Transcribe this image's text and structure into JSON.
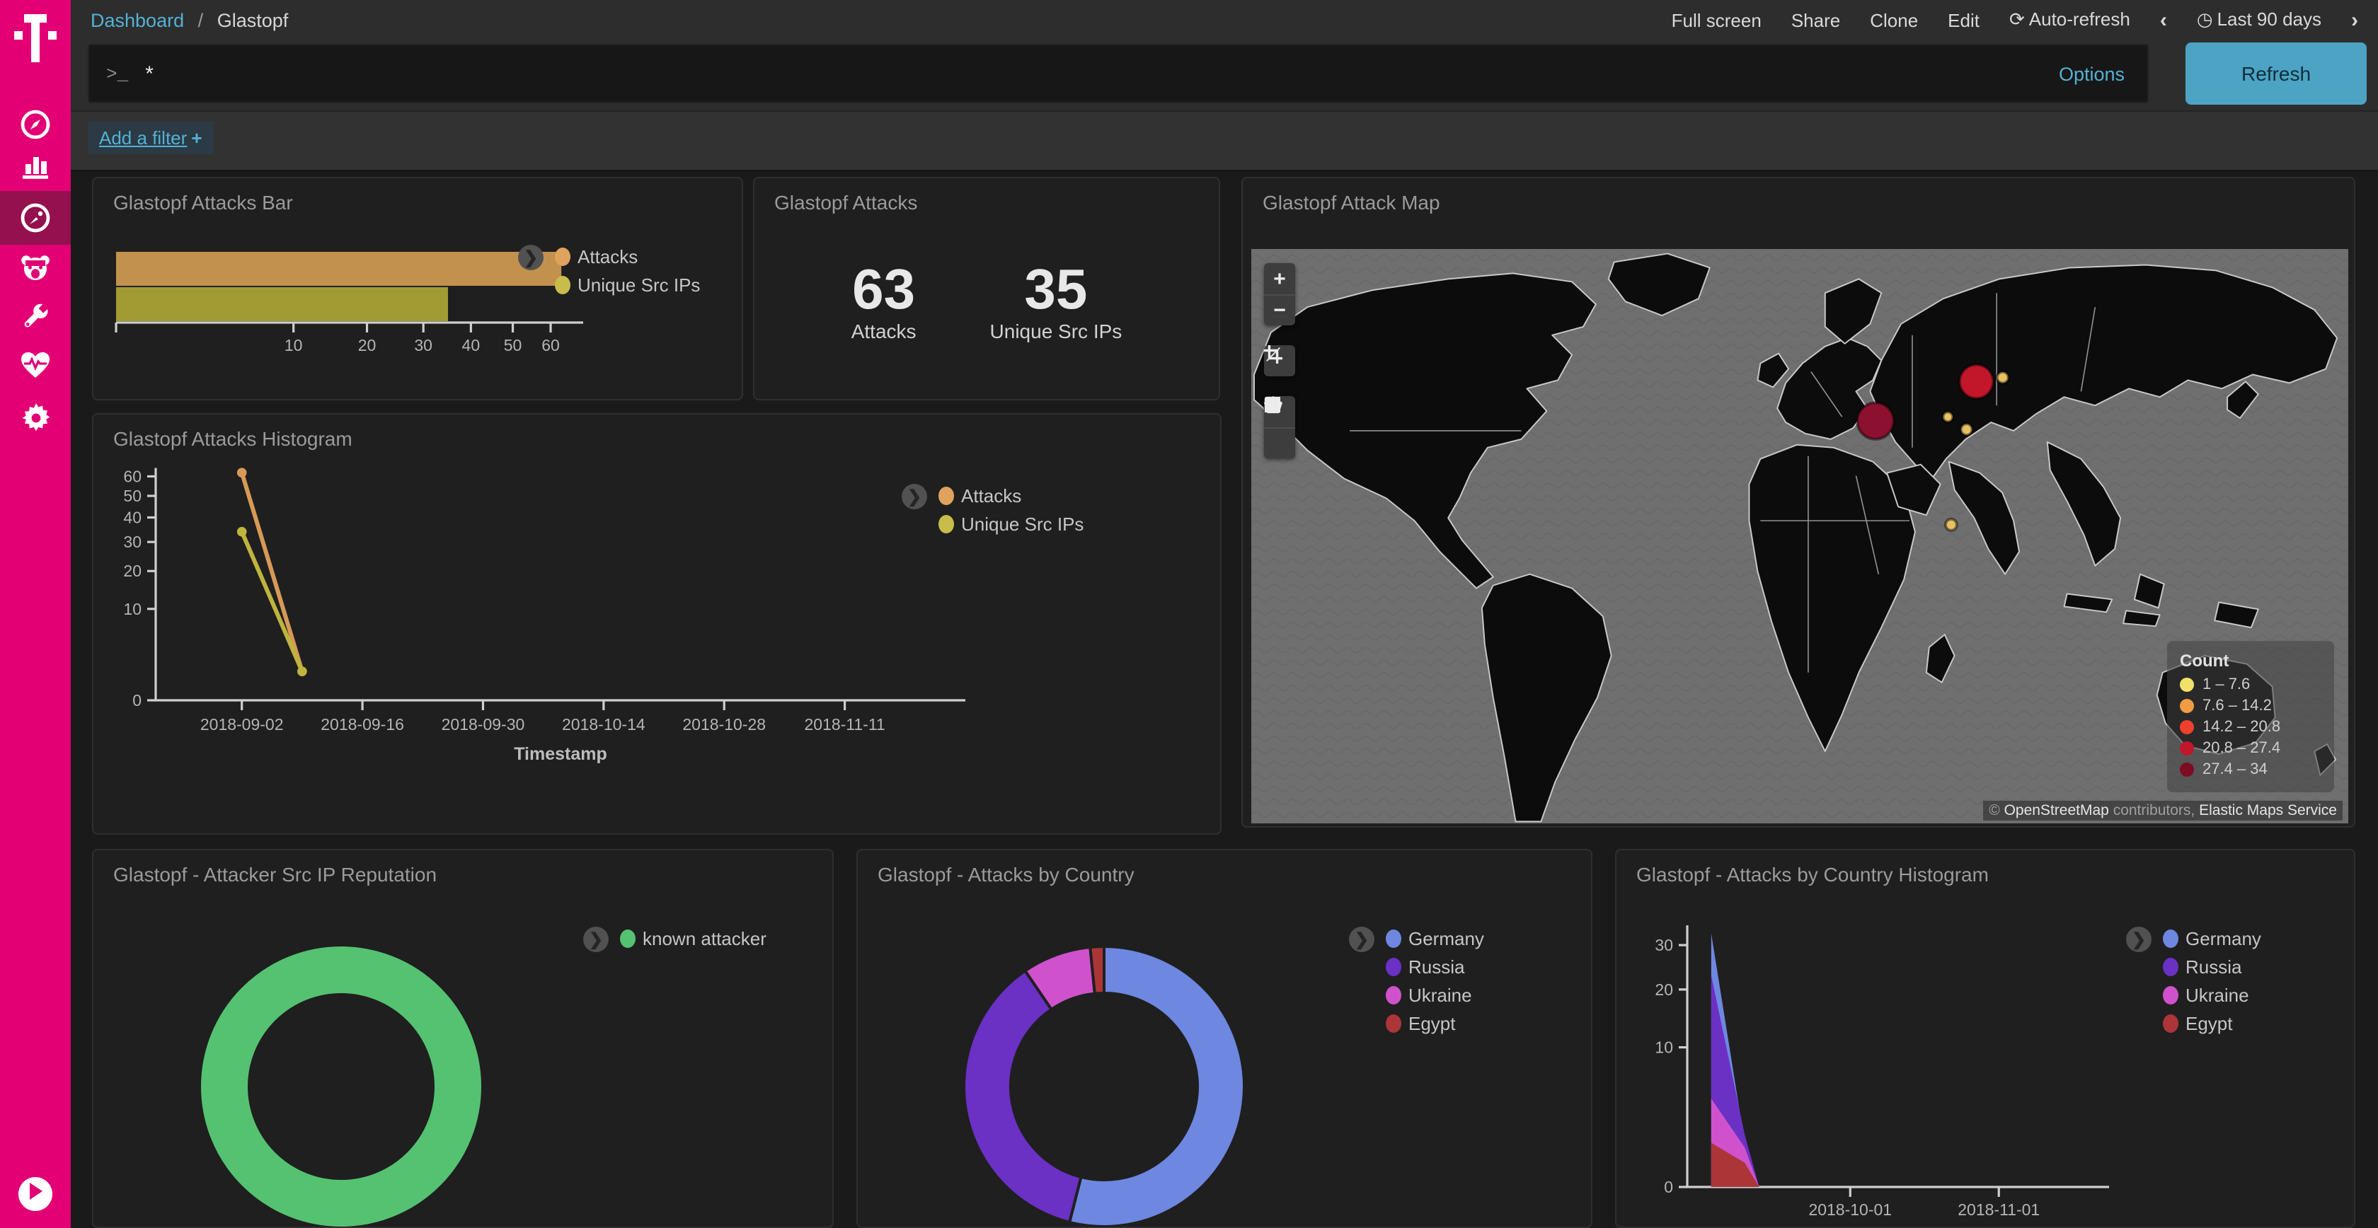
{
  "sidebar": {
    "brand": "Telekom",
    "items": [
      {
        "id": "discover",
        "icon": "compass-icon"
      },
      {
        "id": "visualize",
        "icon": "bar-chart-icon"
      },
      {
        "id": "dashboard",
        "icon": "gauge-icon",
        "active": true
      },
      {
        "id": "honeypot",
        "icon": "bear-icon"
      },
      {
        "id": "dev-tools",
        "icon": "wrench-icon"
      },
      {
        "id": "monitoring",
        "icon": "heartbeat-icon"
      },
      {
        "id": "management",
        "icon": "gear-icon"
      }
    ]
  },
  "topbar": {
    "breadcrumb": {
      "parent": "Dashboard",
      "separator": "/",
      "current": "Glastopf"
    },
    "actions": [
      "Full screen",
      "Share",
      "Clone",
      "Edit"
    ],
    "auto_refresh": "Auto-refresh",
    "prev_arrow": "‹",
    "next_arrow": "›",
    "time_range": "Last 90 days"
  },
  "query": {
    "prompt": ">_",
    "value": "*",
    "options_label": "Options",
    "refresh_label": "Refresh"
  },
  "filter_bar": {
    "add_filter_label": "Add a filter",
    "plus": "+"
  },
  "panels": {
    "attacks_bar": {
      "title": "Glastopf Attacks Bar",
      "legend": [
        {
          "label": "Attacks",
          "color": "#e0a35e"
        },
        {
          "label": "Unique Src IPs",
          "color": "#c8bd4a"
        }
      ]
    },
    "attacks_metric": {
      "title": "Glastopf Attacks",
      "metrics": [
        {
          "value": "63",
          "label": "Attacks"
        },
        {
          "value": "35",
          "label": "Unique Src IPs"
        }
      ]
    },
    "attack_map": {
      "title": "Glastopf Attack Map",
      "legend_title": "Count",
      "legend": [
        {
          "label": "1 – 7.6",
          "color": "#f2e168"
        },
        {
          "label": "7.6 – 14.2",
          "color": "#f09c44"
        },
        {
          "label": "14.2 – 20.8",
          "color": "#ef402d"
        },
        {
          "label": "20.8 – 27.4",
          "color": "#c2162b"
        },
        {
          "label": "27.4 – 34",
          "color": "#7d0c22"
        }
      ],
      "attribution": {
        "copyright": "©",
        "link1": "OpenStreetMap",
        "middle": "contributors,",
        "link2": "Elastic Maps Service"
      },
      "controls": {
        "zoom_in": "+",
        "zoom_out": "−"
      }
    },
    "attacks_histogram": {
      "title": "Glastopf Attacks Histogram",
      "legend": [
        {
          "label": "Attacks",
          "color": "#e0a35e"
        },
        {
          "label": "Unique Src IPs",
          "color": "#c8bd4a"
        }
      ]
    },
    "src_ip_reputation": {
      "title": "Glastopf - Attacker Src IP Reputation",
      "legend": [
        {
          "label": "known attacker",
          "color": "#55c271"
        }
      ]
    },
    "attacks_by_country": {
      "title": "Glastopf - Attacks by Country",
      "legend": [
        {
          "label": "Germany",
          "color": "#6e87e0"
        },
        {
          "label": "Russia",
          "color": "#6b30c4"
        },
        {
          "label": "Ukraine",
          "color": "#cf52cc"
        },
        {
          "label": "Egypt",
          "color": "#ac3538"
        }
      ]
    },
    "country_histogram": {
      "title": "Glastopf - Attacks by Country Histogram",
      "legend": [
        {
          "label": "Germany",
          "color": "#6e87e0"
        },
        {
          "label": "Russia",
          "color": "#6b30c4"
        },
        {
          "label": "Ukraine",
          "color": "#cf52cc"
        },
        {
          "label": "Egypt",
          "color": "#ac3538"
        }
      ]
    }
  },
  "chart_data": {
    "attacks_bar": {
      "type": "bar",
      "orientation": "horizontal",
      "scale_x": "sqrt",
      "categories": [
        "Attacks",
        "Unique Src IPs"
      ],
      "values": [
        63,
        35
      ],
      "colors": [
        "#c3914e",
        "#a29a33"
      ],
      "x_ticks": [
        10,
        20,
        30,
        40,
        50,
        60
      ],
      "x_max": 66
    },
    "attacks_histogram": {
      "type": "line",
      "scale_y": "sqrt",
      "y_max": 66,
      "y_ticks": [
        0,
        10,
        20,
        30,
        40,
        50,
        60
      ],
      "x_domain": [
        "2018-08-23",
        "2018-11-25"
      ],
      "x_ticks": [
        "2018-09-02",
        "2018-09-16",
        "2018-09-30",
        "2018-10-14",
        "2018-10-28",
        "2018-11-11"
      ],
      "xlabel": "Timestamp",
      "series": [
        {
          "name": "Attacks",
          "color": "#d79a56",
          "points": [
            [
              "2018-09-02",
              62
            ],
            [
              "2018-09-09",
              1
            ]
          ]
        },
        {
          "name": "Unique Src IPs",
          "color": "#bfb43e",
          "points": [
            [
              "2018-09-02",
              34
            ],
            [
              "2018-09-09",
              1
            ]
          ]
        }
      ]
    },
    "attack_map": {
      "type": "map-bubbles",
      "bubbles": [
        {
          "x": 0.569,
          "y": 0.298,
          "r": 13,
          "color": "#8c102f",
          "bucket": "27.4 – 34"
        },
        {
          "x": 0.661,
          "y": 0.229,
          "r": 12,
          "color": "#c2162b",
          "bucket": "20.8 – 27.4"
        },
        {
          "x": 0.685,
          "y": 0.222,
          "r": 4,
          "color": "#e7c262",
          "bucket": "1 – 7.6"
        },
        {
          "x": 0.635,
          "y": 0.291,
          "r": 3.5,
          "color": "#e7c262",
          "bucket": "1 – 7.6"
        },
        {
          "x": 0.652,
          "y": 0.313,
          "r": 4,
          "color": "#e7c262",
          "bucket": "1 – 7.6"
        },
        {
          "x": 0.638,
          "y": 0.48,
          "r": 4,
          "color": "#e7c262",
          "bucket": "1 – 7.6"
        }
      ]
    },
    "src_ip_reputation": {
      "type": "donut",
      "slices": [
        {
          "label": "known attacker",
          "value": 63,
          "color": "#55c271"
        }
      ]
    },
    "attacks_by_country": {
      "type": "donut",
      "slices": [
        {
          "label": "Germany",
          "value": 34,
          "color": "#6e87e0"
        },
        {
          "label": "Russia",
          "value": 23,
          "color": "#6b30c4"
        },
        {
          "label": "Ukraine",
          "value": 5,
          "color": "#cf52cc"
        },
        {
          "label": "Egypt",
          "value": 1,
          "color": "#ac3538"
        }
      ]
    },
    "country_histogram": {
      "type": "area",
      "mode": "overlap",
      "scale_y": "sqrt",
      "y_max": 34,
      "y_ticks": [
        0,
        10,
        20,
        30
      ],
      "x_domain": [
        "2018-08-28",
        "2018-11-24"
      ],
      "x_ticks": [
        "2018-10-01",
        "2018-11-01"
      ],
      "xlabel": "Timestamp",
      "series": [
        {
          "name": "Germany",
          "color": "#6e87e0",
          "points": [
            [
              "2018-09-02",
              33
            ],
            [
              "2018-09-09",
              1.0
            ],
            [
              "2018-09-12",
              0
            ]
          ]
        },
        {
          "name": "Russia",
          "color": "#6b30c4",
          "points": [
            [
              "2018-09-02",
              23
            ],
            [
              "2018-09-09",
              1.4
            ],
            [
              "2018-09-12",
              0
            ]
          ]
        },
        {
          "name": "Ukraine",
          "color": "#cf52cc",
          "points": [
            [
              "2018-09-02",
              4
            ],
            [
              "2018-09-09",
              0.8
            ],
            [
              "2018-09-12",
              0
            ]
          ]
        },
        {
          "name": "Egypt",
          "color": "#ac3538",
          "points": [
            [
              "2018-09-02",
              1
            ],
            [
              "2018-09-09",
              0.3
            ],
            [
              "2018-09-12",
              0
            ]
          ]
        }
      ]
    }
  }
}
